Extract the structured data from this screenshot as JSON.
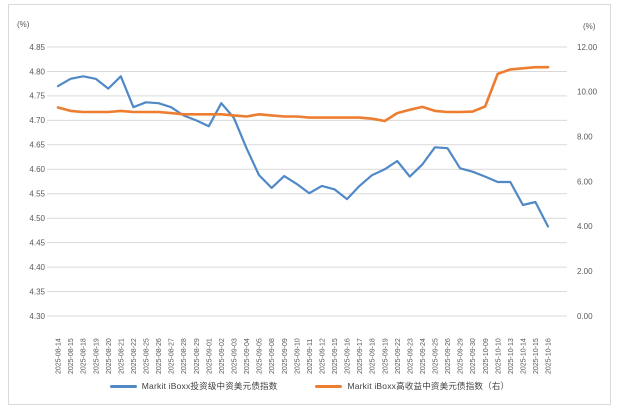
{
  "chart_data": {
    "type": "line",
    "title": "",
    "legend_position": "bottom",
    "grid": "horizontal",
    "unit_left": "(%)",
    "unit_right": "(%)",
    "categories": [
      "2025-08-14",
      "2025-08-15",
      "2025-08-18",
      "2025-08-19",
      "2025-08-20",
      "2025-08-21",
      "2025-08-22",
      "2025-08-25",
      "2025-08-26",
      "2025-08-27",
      "2025-08-28",
      "2025-08-29",
      "2025-09-01",
      "2025-09-02",
      "2025-09-03",
      "2025-09-04",
      "2025-09-05",
      "2025-09-08",
      "2025-09-09",
      "2025-09-10",
      "2025-09-11",
      "2025-09-12",
      "2025-09-15",
      "2025-09-16",
      "2025-09-17",
      "2025-09-18",
      "2025-09-19",
      "2025-09-22",
      "2025-09-23",
      "2025-09-24",
      "2025-09-25",
      "2025-09-26",
      "2025-09-29",
      "2025-09-30",
      "2025-10-09",
      "2025-10-10",
      "2025-10-13",
      "2025-10-14",
      "2025-10-15",
      "2025-10-16"
    ],
    "y_left": {
      "label": "(%)",
      "min": 4.3,
      "max": 4.85,
      "step": 0.05,
      "tick_format_decimals": 2
    },
    "y_right": {
      "label": "(%)",
      "min": 0.0,
      "max": 12.0,
      "step": 2.0,
      "tick_format_decimals": 2
    },
    "series": [
      {
        "name": "Markit iBoxx投资级中资美元债指数",
        "axis": "left",
        "color": "#5089c6",
        "values": [
          4.77,
          4.785,
          4.79,
          4.785,
          4.765,
          4.79,
          4.727,
          4.737,
          4.735,
          4.727,
          4.71,
          4.7,
          4.688,
          4.735,
          4.705,
          4.643,
          4.588,
          4.562,
          4.586,
          4.57,
          4.551,
          4.566,
          4.559,
          4.539,
          4.566,
          4.588,
          4.6,
          4.617,
          4.585,
          4.61,
          4.645,
          4.643,
          4.602,
          4.595,
          4.585,
          4.574,
          4.574,
          4.527,
          4.533,
          4.483
        ]
      },
      {
        "name": "Markit iBoxx高收益中资美元债指数（右）",
        "axis": "right",
        "color": "#ed7d31",
        "values": [
          9.3,
          9.15,
          9.1,
          9.1,
          9.1,
          9.15,
          9.1,
          9.1,
          9.1,
          9.05,
          9.0,
          9.0,
          9.0,
          9.0,
          8.95,
          8.9,
          9.0,
          8.95,
          8.9,
          8.9,
          8.85,
          8.85,
          8.85,
          8.85,
          8.85,
          8.8,
          8.7,
          9.05,
          9.2,
          9.33,
          9.15,
          9.1,
          9.1,
          9.12,
          9.35,
          10.8,
          11.0,
          11.05,
          11.1,
          11.1
        ]
      }
    ],
    "colors": {
      "gridline": "#d9d9d9",
      "border": "#d9d9d9",
      "axis_text": "#595959"
    }
  }
}
